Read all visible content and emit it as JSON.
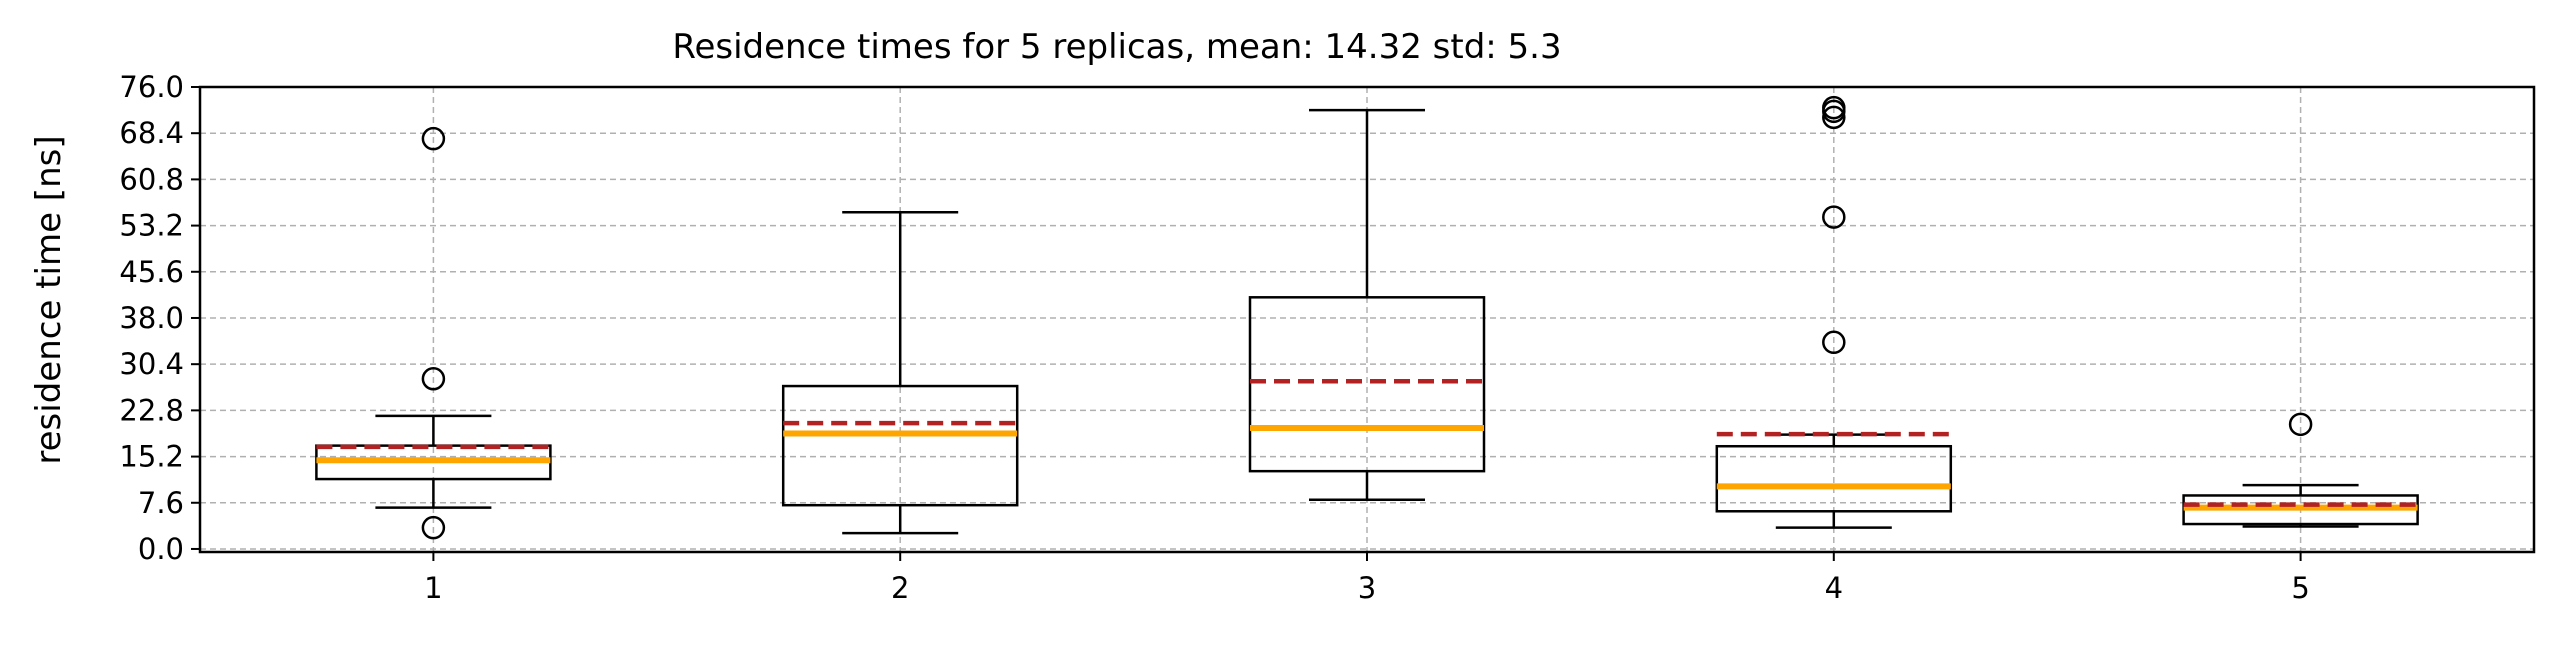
{
  "chart_data": {
    "type": "box",
    "title": "Residence times for 5 replicas, mean: 14.32  std: 5.3",
    "xlabel": "",
    "ylabel": "residence time [ns]",
    "ylim": [
      -0.5,
      76.0
    ],
    "xlim": [
      0.5,
      5.5
    ],
    "yticks": [
      "0.0",
      "7.6",
      "15.2",
      "22.8",
      "30.4",
      "38.0",
      "45.6",
      "53.2",
      "60.8",
      "68.4",
      "76.0"
    ],
    "categories": [
      "1",
      "2",
      "3",
      "4",
      "5"
    ],
    "grid": true,
    "grid_style": "dashed",
    "colors": {
      "box": "#000000",
      "median": "#FFA500",
      "mean": "#B22222",
      "grid": "#b0b0b0"
    },
    "series": [
      {
        "whisker_low": 6.8,
        "q1": 11.5,
        "median": 14.6,
        "mean": 16.8,
        "q3": 17.0,
        "whisker_high": 21.9,
        "outliers": [
          3.5,
          28.0,
          67.5
        ]
      },
      {
        "whisker_low": 2.6,
        "q1": 7.2,
        "median": 19.0,
        "mean": 20.7,
        "q3": 26.8,
        "whisker_high": 55.4,
        "outliers": []
      },
      {
        "whisker_low": 8.1,
        "q1": 12.8,
        "median": 19.9,
        "mean": 27.6,
        "q3": 41.4,
        "whisker_high": 72.2,
        "outliers": []
      },
      {
        "whisker_low": 3.5,
        "q1": 6.2,
        "median": 10.3,
        "mean": 18.9,
        "q3": 16.9,
        "whisker_high": 18.8,
        "outliers": [
          34.0,
          54.6,
          71.0,
          72.0,
          72.6
        ]
      },
      {
        "whisker_low": 3.7,
        "q1": 4.1,
        "median": 6.8,
        "mean": 7.3,
        "q3": 8.8,
        "whisker_high": 10.5,
        "outliers": [
          20.5
        ]
      }
    ]
  }
}
